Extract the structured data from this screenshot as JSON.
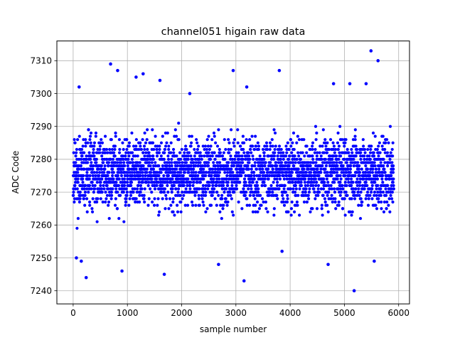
{
  "chart_data": {
    "type": "scatter",
    "title": "channel051 higain raw data",
    "xlabel": "sample number",
    "ylabel": "ADC Code",
    "xlim": [
      -300,
      6200
    ],
    "ylim": [
      7236,
      7316
    ],
    "x_ticks": [
      0,
      1000,
      2000,
      3000,
      4000,
      5000,
      6000
    ],
    "y_ticks": [
      7240,
      7250,
      7260,
      7270,
      7280,
      7290,
      7300,
      7310
    ],
    "grid": true,
    "marker": "filled circle",
    "color": "#0000ff",
    "series": [
      {
        "n_points": 5911,
        "x_range": [
          0,
          5910
        ],
        "band_center": 7276,
        "band_spread": [
          7260,
          7292
        ],
        "outliers": [
          {
            "x": 110,
            "y": 7302
          },
          {
            "x": 690,
            "y": 7309
          },
          {
            "x": 820,
            "y": 7307
          },
          {
            "x": 1160,
            "y": 7305
          },
          {
            "x": 1290,
            "y": 7306
          },
          {
            "x": 1600,
            "y": 7304
          },
          {
            "x": 2950,
            "y": 7307
          },
          {
            "x": 3800,
            "y": 7307
          },
          {
            "x": 5490,
            "y": 7313
          },
          {
            "x": 5620,
            "y": 7310
          },
          {
            "x": 5100,
            "y": 7303
          },
          {
            "x": 5400,
            "y": 7303
          },
          {
            "x": 4800,
            "y": 7303
          },
          {
            "x": 3200,
            "y": 7302
          },
          {
            "x": 2150,
            "y": 7300
          },
          {
            "x": 60,
            "y": 7250
          },
          {
            "x": 150,
            "y": 7249
          },
          {
            "x": 240,
            "y": 7244
          },
          {
            "x": 900,
            "y": 7246
          },
          {
            "x": 1680,
            "y": 7245
          },
          {
            "x": 2680,
            "y": 7248
          },
          {
            "x": 3150,
            "y": 7243
          },
          {
            "x": 3850,
            "y": 7252
          },
          {
            "x": 4700,
            "y": 7248
          },
          {
            "x": 5180,
            "y": 7240
          },
          {
            "x": 5550,
            "y": 7249
          }
        ]
      }
    ]
  }
}
